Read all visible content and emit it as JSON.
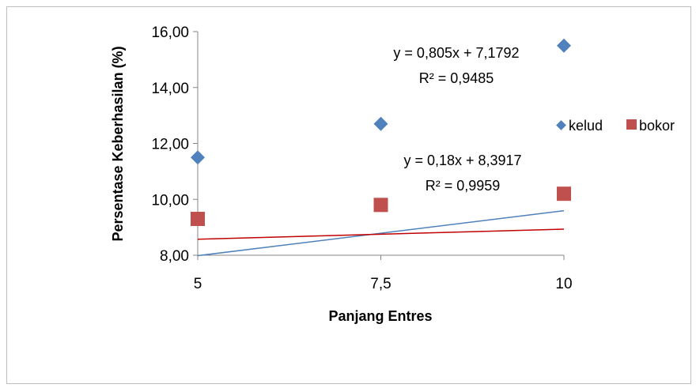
{
  "chart_data": {
    "type": "scatter",
    "title": "",
    "xlabel": "Panjang Entres",
    "ylabel": "Persentase Keberhasilan (%)",
    "x_categories": [
      "5",
      "7,5",
      "10"
    ],
    "x": [
      5,
      7.5,
      10
    ],
    "ylim": [
      8,
      16
    ],
    "y_ticks": [
      "8,00",
      "10,00",
      "12,00",
      "14,00",
      "16,00"
    ],
    "grid": false,
    "legend_position": "right",
    "series": [
      {
        "name": "kelud",
        "marker": "diamond",
        "color": "#4f81bd",
        "trend_color": "#4f81bd",
        "values": [
          11.5,
          12.7,
          15.5
        ],
        "trendline": {
          "slope": 0.805,
          "intercept": 7.1792,
          "x_index": [
            1,
            3
          ]
        },
        "equation": "y = 0,805x + 7,1792",
        "r2": "R² = 0,9485"
      },
      {
        "name": "bokor",
        "marker": "square",
        "color": "#c0504d",
        "trend_color": "#c00000",
        "values": [
          9.3,
          9.8,
          10.2
        ],
        "trendline": {
          "slope": 0.18,
          "intercept": 8.3917,
          "x_index": [
            1,
            3
          ]
        },
        "equation": "y = 0,18x + 8,3917",
        "r2": "R² = 0,9959"
      }
    ]
  }
}
